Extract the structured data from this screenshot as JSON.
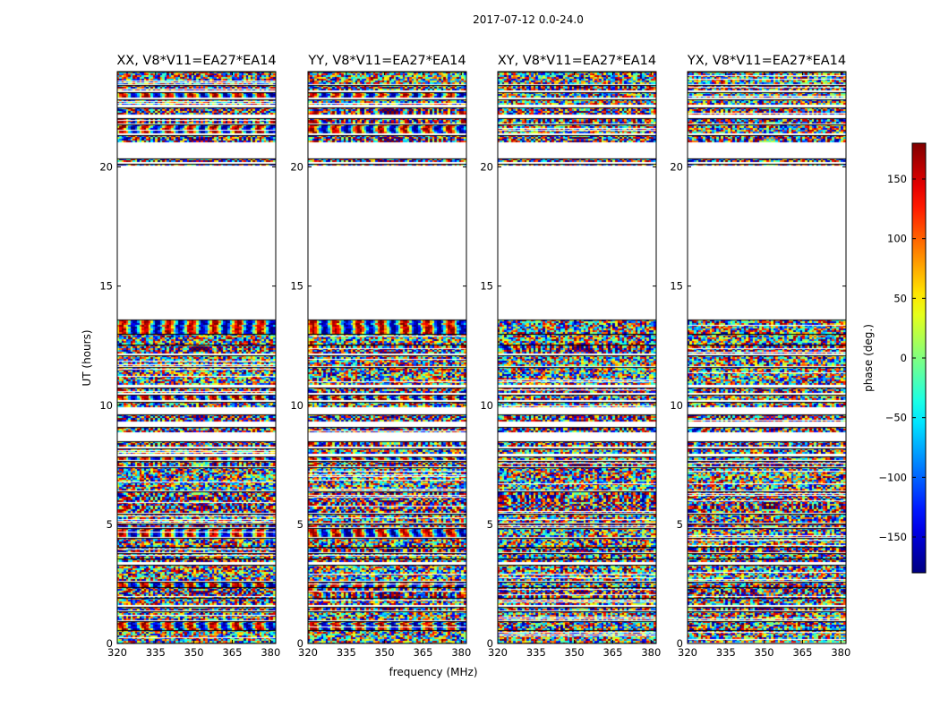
{
  "chart_data": {
    "type": "heatmap",
    "suptitle": "2017-07-12 0.0-24.0",
    "xlabel": "frequency (MHz)",
    "ylabel": "UT (hours)",
    "xlim": [
      320,
      382
    ],
    "ylim": [
      0,
      24
    ],
    "xticks": [
      "320",
      "335",
      "350",
      "365",
      "380"
    ],
    "xtick_values": [
      320,
      335,
      350,
      365,
      380
    ],
    "yticks": [
      "0",
      "5",
      "10",
      "15",
      "20"
    ],
    "ytick_values": [
      0,
      5,
      10,
      15,
      20
    ],
    "panels": [
      {
        "title": "XX, V8*V11=EA27*EA14",
        "kind": "parallel"
      },
      {
        "title": "YY, V8*V11=EA27*EA14",
        "kind": "parallel"
      },
      {
        "title": "XY, V8*V11=EA27*EA14",
        "kind": "cross"
      },
      {
        "title": "YX, V8*V11=EA27*EA14",
        "kind": "cross"
      }
    ],
    "data_bands": [
      [
        0.0,
        0.55,
        "noisy"
      ],
      [
        0.6,
        0.95,
        "fringe"
      ],
      [
        1.0,
        1.35,
        "noisy"
      ],
      [
        1.4,
        1.55,
        "stripe"
      ],
      [
        1.6,
        1.9,
        "noisy"
      ],
      [
        1.95,
        2.35,
        "stripe"
      ],
      [
        2.4,
        2.6,
        "fringe"
      ],
      [
        2.65,
        3.3,
        "noisy"
      ],
      [
        3.4,
        3.55,
        "stripe"
      ],
      [
        3.6,
        3.8,
        "noisy"
      ],
      [
        3.85,
        4.05,
        "stripe"
      ],
      [
        4.1,
        4.45,
        "noisy"
      ],
      [
        4.5,
        4.85,
        "fringe"
      ],
      [
        4.9,
        5.05,
        "stripe"
      ],
      [
        5.1,
        5.45,
        "noisy"
      ],
      [
        5.5,
        6.4,
        "stripe"
      ],
      [
        6.45,
        7.4,
        "noisy"
      ],
      [
        7.45,
        7.65,
        "stripe"
      ],
      [
        7.7,
        7.85,
        "fringe"
      ],
      [
        7.95,
        8.2,
        "noisy"
      ],
      [
        8.3,
        8.5,
        "stripe"
      ],
      [
        8.9,
        9.1,
        "stripe"
      ],
      [
        9.3,
        9.6,
        "stripe"
      ],
      [
        9.9,
        10.15,
        "noisy"
      ],
      [
        10.2,
        10.45,
        "fringe"
      ],
      [
        10.5,
        10.75,
        "stripe"
      ],
      [
        10.85,
        11.6,
        "noisy"
      ],
      [
        11.65,
        12.1,
        "noisy"
      ],
      [
        12.2,
        12.55,
        "stripe"
      ],
      [
        12.6,
        13.0,
        "noisy"
      ],
      [
        13.05,
        13.6,
        "fringe"
      ],
      [
        20.05,
        20.15,
        "stripe"
      ],
      [
        20.25,
        20.35,
        "stripe"
      ],
      [
        21.05,
        21.35,
        "stripe"
      ],
      [
        21.4,
        21.8,
        "fringe"
      ],
      [
        21.85,
        22.05,
        "stripe"
      ],
      [
        22.25,
        22.5,
        "stripe"
      ],
      [
        22.6,
        22.85,
        "noisy"
      ],
      [
        22.95,
        23.15,
        "fringe"
      ],
      [
        23.2,
        23.45,
        "stripe"
      ],
      [
        23.5,
        24.0,
        "noisy"
      ]
    ],
    "colorbar": {
      "label": "phase (deg.)",
      "range": [
        -180,
        180
      ],
      "ticks": [
        "150",
        "100",
        "50",
        "0",
        "−50",
        "−100",
        "−150"
      ],
      "tick_values": [
        150,
        100,
        50,
        0,
        -50,
        -100,
        -150
      ],
      "colormap": "jet"
    }
  }
}
